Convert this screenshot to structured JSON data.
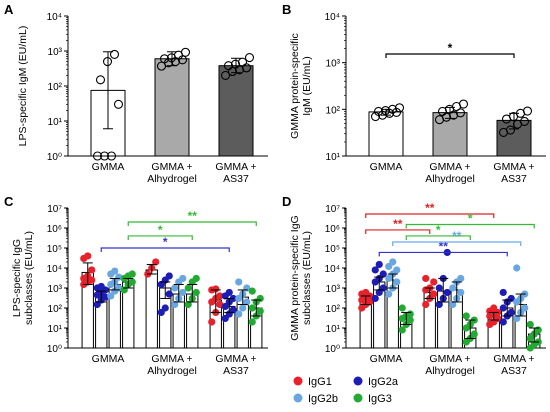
{
  "chart_data": [
    {
      "panel": "A",
      "type": "bar",
      "ylabel": "LPS-specific IgM (EU/mL)",
      "yscale": "log",
      "ylim": [
        1,
        10000
      ],
      "ytick_labels": [
        "10⁰",
        "10¹",
        "10²",
        "10³",
        "10⁴"
      ],
      "categories": [
        "GMMA",
        "GMMA +|Alhydrogel",
        "GMMA +|AS37"
      ],
      "bar_fill": [
        "#ffffff",
        "#a9a9a9",
        "#5c5c5c"
      ],
      "means": [
        75,
        600,
        380
      ],
      "error_low": [
        6,
        380,
        240
      ],
      "error_high": [
        950,
        950,
        620
      ],
      "points": [
        [
          1,
          1,
          1,
          30,
          150,
          500,
          800
        ],
        [
          370,
          460,
          500,
          560,
          600,
          640,
          760,
          920
        ],
        [
          200,
          260,
          290,
          330,
          380,
          420,
          480,
          650
        ]
      ]
    },
    {
      "panel": "B",
      "type": "bar",
      "ylabel": "GMMA protein-specific|IgM (EU/mL)",
      "yscale": "log",
      "ylim": [
        10,
        10000
      ],
      "ytick_labels": [
        "10¹",
        "10²",
        "10³",
        "10⁴"
      ],
      "categories": [
        "GMMA",
        "GMMA +|Alhydrogel",
        "GMMA +|AS37"
      ],
      "bar_fill": [
        "#ffffff",
        "#a9a9a9",
        "#5c5c5c"
      ],
      "means": [
        88,
        85,
        58
      ],
      "error_low": [
        75,
        64,
        38
      ],
      "error_high": [
        100,
        110,
        82
      ],
      "points": [
        [
          70,
          75,
          82,
          86,
          90,
          94,
          100,
          108
        ],
        [
          60,
          68,
          75,
          84,
          90,
          100,
          115,
          130
        ],
        [
          32,
          36,
          48,
          55,
          62,
          70,
          82,
          92
        ]
      ],
      "significance": [
        {
          "from": 0,
          "to": 2,
          "label": "*",
          "color": "#000000"
        }
      ]
    },
    {
      "panel": "C",
      "type": "bar",
      "ylabel": "LPS-specific IgG|subclasses (EU/mL)",
      "yscale": "log",
      "ylim": [
        1,
        10000000
      ],
      "ytick_labels": [
        "10⁰",
        "10¹",
        "10²",
        "10³",
        "10⁴",
        "10⁵",
        "10⁶",
        "10⁷"
      ],
      "categories": [
        "GMMA",
        "GMMA +|Alhydrogel",
        "GMMA +|AS37"
      ],
      "series": [
        {
          "name": "IgG1",
          "color": "#e8212b",
          "means": [
            6000,
            8000,
            250
          ],
          "error_low": [
            1500,
            5000,
            60
          ],
          "error_high": [
            18000,
            15000,
            800
          ],
          "points": [
            [
              1500,
              2000,
              2500,
              3000,
              4000,
              8000,
              30000,
              40000
            ],
            [
              5000,
              10000,
              20000
            ],
            [
              20,
              60,
              150,
              200,
              300,
              400,
              800,
              900
            ]
          ]
        },
        {
          "name": "IgG2a",
          "color": "#1d1db5",
          "means": [
            400,
            1000,
            120
          ],
          "error_low": [
            200,
            300,
            60
          ],
          "error_high": [
            700,
            2000,
            300
          ],
          "points": [
            [
              150,
              250,
              350,
              450,
              600,
              800,
              1000,
              1200
            ],
            [
              60,
              100,
              500,
              1500,
              2500,
              4000
            ],
            [
              30,
              50,
              80,
              120,
              200,
              300,
              400,
              600
            ]
          ]
        },
        {
          "name": "IgG2b",
          "color": "#6aa6e0",
          "means": [
            1500,
            500,
            350
          ],
          "error_low": [
            800,
            200,
            150
          ],
          "error_high": [
            3000,
            1500,
            800
          ],
          "points": [
            [
              400,
              700,
              1000,
              1500,
              2000,
              3500,
              5000,
              7000
            ],
            [
              150,
              300,
              600,
              1000,
              2000,
              3000
            ],
            [
              50,
              100,
              200,
              300,
              500,
              1000,
              2000
            ]
          ]
        },
        {
          "name": "IgG3",
          "color": "#22aa33",
          "means": [
            2000,
            500,
            100
          ],
          "error_low": [
            1000,
            200,
            40
          ],
          "error_high": [
            3000,
            1500,
            250
          ],
          "points": [
            [
              800,
              1500,
              2000,
              3000,
              4000,
              5000
            ],
            [
              150,
              300,
              600,
              1000,
              2000,
              3000
            ],
            [
              20,
              40,
              70,
              100,
              200,
              300,
              700
            ]
          ]
        }
      ],
      "significance": [
        {
          "from_cat": 0,
          "to_cat": 2,
          "series": 1,
          "label": "*",
          "color": "#3333cc",
          "level": 100000
        },
        {
          "from_cat": 0,
          "to_cat": 1,
          "series": 3,
          "label": "*",
          "color": "#33bb33",
          "level": 400000
        },
        {
          "from_cat": 0,
          "to_cat": 2,
          "series": 3,
          "label": "**",
          "color": "#33bb33",
          "level": 2000000
        }
      ]
    },
    {
      "panel": "D",
      "type": "bar",
      "ylabel": "GMMA protein-specific IgG|subclasses (EU/mL)",
      "yscale": "log",
      "ylim": [
        1,
        10000000
      ],
      "ytick_labels": [
        "10⁰",
        "10¹",
        "10²",
        "10³",
        "10⁴",
        "10⁵",
        "10⁶",
        "10⁷"
      ],
      "categories": [
        "GMMA",
        "GMMA +|Alhydrogel",
        "GMMA +|AS37"
      ],
      "series": [
        {
          "name": "IgG1",
          "color": "#e8212b",
          "means": [
            250,
            600,
            40
          ],
          "error_low": [
            150,
            300,
            25
          ],
          "error_high": [
            400,
            1000,
            60
          ],
          "points": [
            [
              100,
              150,
              200,
              250,
              300,
              400,
              500,
              600
            ],
            [
              150,
              300,
              500,
              800,
              1000,
              2000,
              3000
            ],
            [
              15,
              20,
              30,
              40,
              50,
              60,
              70,
              100
            ]
          ]
        },
        {
          "name": "IgG2a",
          "color": "#1d1db5",
          "means": [
            2000,
            700,
            100
          ],
          "error_low": [
            800,
            200,
            40
          ],
          "error_high": [
            3500,
            3000,
            250
          ],
          "points": [
            [
              300,
              600,
              1000,
              2000,
              3000,
              5000,
              8000,
              15000
            ],
            [
              150,
              300,
              600,
              1000,
              3000,
              60000
            ],
            [
              20,
              40,
              60,
              100,
              200,
              300,
              600
            ]
          ]
        },
        {
          "name": "IgG2b",
          "color": "#6aa6e0",
          "means": [
            2500,
            800,
            150
          ],
          "error_low": [
            1000,
            200,
            40
          ],
          "error_high": [
            5000,
            2000,
            500
          ],
          "points": [
            [
              500,
              1000,
              2000,
              3000,
              5000,
              8000,
              12000,
              20000
            ],
            [
              150,
              300,
              600,
              1000,
              2000,
              3000
            ],
            [
              30,
              60,
              100,
              200,
              300,
              500,
              10000
            ]
          ]
        },
        {
          "name": "IgG3",
          "color": "#22aa33",
          "means": [
            30,
            10,
            5
          ],
          "error_low": [
            15,
            3,
            2
          ],
          "error_high": [
            60,
            25,
            10
          ],
          "points": [
            [
              8,
              15,
              25,
              30,
              40,
              50,
              100
            ],
            [
              2,
              3,
              5,
              10,
              15,
              25,
              40
            ],
            [
              1,
              1.5,
              2,
              3,
              5,
              8,
              15
            ]
          ]
        }
      ],
      "significance": [
        {
          "from_cat": 0,
          "to_cat": 1,
          "series": 0,
          "label": "**",
          "color": "#dd2222",
          "level": 800000
        },
        {
          "from_cat": 0,
          "to_cat": 2,
          "series": 0,
          "label": "**",
          "color": "#dd2222",
          "level": 5000000
        },
        {
          "from_cat": 0,
          "to_cat": 2,
          "series": 1,
          "label": "**",
          "color": "#3333cc",
          "level": 60000
        },
        {
          "from_cat": 0,
          "to_cat": 2,
          "series": 2,
          "label": "**",
          "color": "#66aaee",
          "level": 200000
        },
        {
          "from_cat": 0,
          "to_cat": 1,
          "series": 3,
          "label": "*",
          "color": "#33bb33",
          "level": 400000
        },
        {
          "from_cat": 0,
          "to_cat": 2,
          "series": 3,
          "label": "*",
          "color": "#33bb33",
          "level": 1500000
        }
      ]
    }
  ],
  "legend": {
    "items": [
      {
        "name": "IgG1",
        "color": "#e8212b"
      },
      {
        "name": "IgG2a",
        "color": "#1d1db5"
      },
      {
        "name": "IgG2b",
        "color": "#6aa6e0"
      },
      {
        "name": "IgG3",
        "color": "#22aa33"
      }
    ]
  }
}
